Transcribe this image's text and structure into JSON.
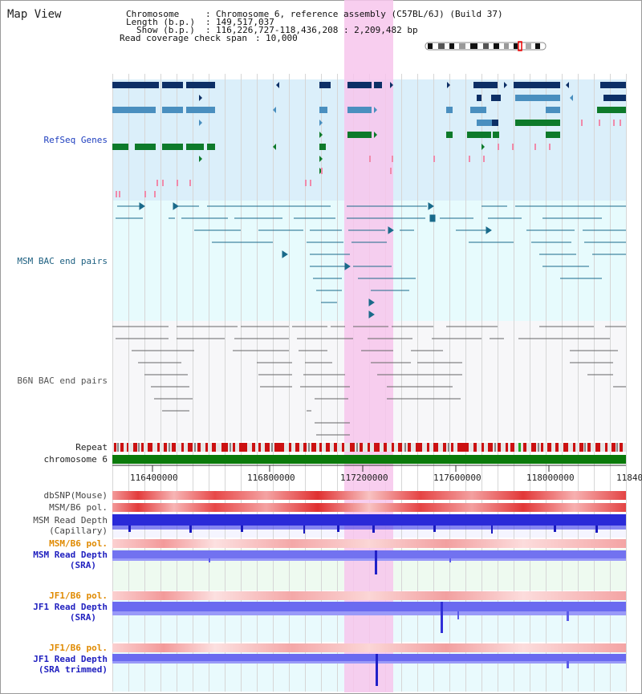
{
  "window": {
    "title": "Map View"
  },
  "header": {
    "chromosome_key": "Chromosome",
    "chromosome_val": "Chromosome 6, reference assembly (C57BL/6J) (Build 37)",
    "length_key": "Length (b.p.)",
    "length_val": "149,517,037",
    "show_key": "Show (b.p.)",
    "show_val": "116,226,727-118,436,208 : 2,209,482 bp",
    "span_key": "Read coverage check span",
    "span_val": "10,000"
  },
  "tracks": {
    "refseq": "RefSeq Genes",
    "msm_bac": "MSM BAC end pairs",
    "b6n_bac": "B6N BAC end pairs",
    "repeat": "Repeat",
    "chromosome": "chromosome 6",
    "dbsnp": "dbSNP(Mouse)",
    "msm_b6_pol_1": "MSM/B6 pol.",
    "msm_depth_cap_1": "MSM Read Depth",
    "msm_depth_cap_2": "(Capillary)",
    "msm_b6_pol_2": "MSM/B6 pol.",
    "msm_depth_sra_1": "MSM Read Depth",
    "msm_depth_sra_2": "(SRA)",
    "jf1_b6_pol_1": "JF1/B6 pol.",
    "jf1_depth_sra_1": "JF1 Read Depth",
    "jf1_depth_sra_2": "(SRA)",
    "jf1_b6_pol_2": "JF1/B6 pol.",
    "jf1_depth_trim_1": "JF1 Read Depth",
    "jf1_depth_trim_2": "(SRA trimmed)"
  },
  "axis": {
    "ticks": [
      "116400000",
      "116800000",
      "117200000",
      "117600000",
      "118000000",
      "11840"
    ]
  },
  "colors": {
    "refseq_label": "#1f3fbf",
    "msm_label": "#1c5f80",
    "b6n_label": "#555555",
    "pol_label": "#e08a00",
    "depth_label": "#1f1fbf",
    "highlight": "#f7c6ec",
    "chrom_bar": "#0a7a0a"
  }
}
